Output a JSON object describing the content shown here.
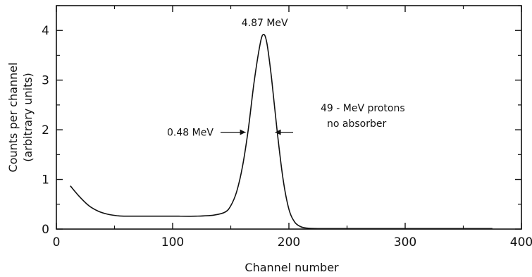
{
  "chart_data": {
    "type": "line",
    "title": "",
    "xlabel": "Channel number",
    "ylabel_lines": [
      "Counts per channel",
      "(arbitrary units)"
    ],
    "xlim": [
      0,
      400
    ],
    "ylim": [
      0,
      4.5
    ],
    "x_ticks": [
      0,
      100,
      200,
      300,
      400
    ],
    "x_tick_labels": [
      "0",
      "100",
      "200",
      "300",
      "400"
    ],
    "y_ticks": [
      0,
      1,
      2,
      3,
      4
    ],
    "y_tick_labels": [
      "0",
      "1",
      "2",
      "3",
      "4"
    ],
    "grid": false,
    "series": [
      {
        "x": [
          12,
          20,
          28,
          36,
          44,
          52,
          60,
          80,
          100,
          120,
          135,
          145,
          150,
          155,
          160,
          165,
          170,
          175,
          178,
          181,
          185,
          190,
          195,
          200,
          205,
          210,
          215,
          225,
          250,
          300,
          375
        ],
        "y": [
          0.87,
          0.65,
          0.47,
          0.36,
          0.3,
          0.27,
          0.26,
          0.26,
          0.26,
          0.26,
          0.28,
          0.34,
          0.47,
          0.75,
          1.25,
          2.0,
          2.95,
          3.7,
          3.92,
          3.75,
          3.05,
          1.95,
          1.0,
          0.4,
          0.14,
          0.05,
          0.02,
          0.01,
          0.01,
          0.01,
          0.01
        ]
      }
    ],
    "annotations": {
      "peak_label": "4.87 MeV",
      "fwhm_label": "0.48 MeV",
      "legend_line1": "49 - MeV protons",
      "legend_line2": "no absorber"
    }
  }
}
